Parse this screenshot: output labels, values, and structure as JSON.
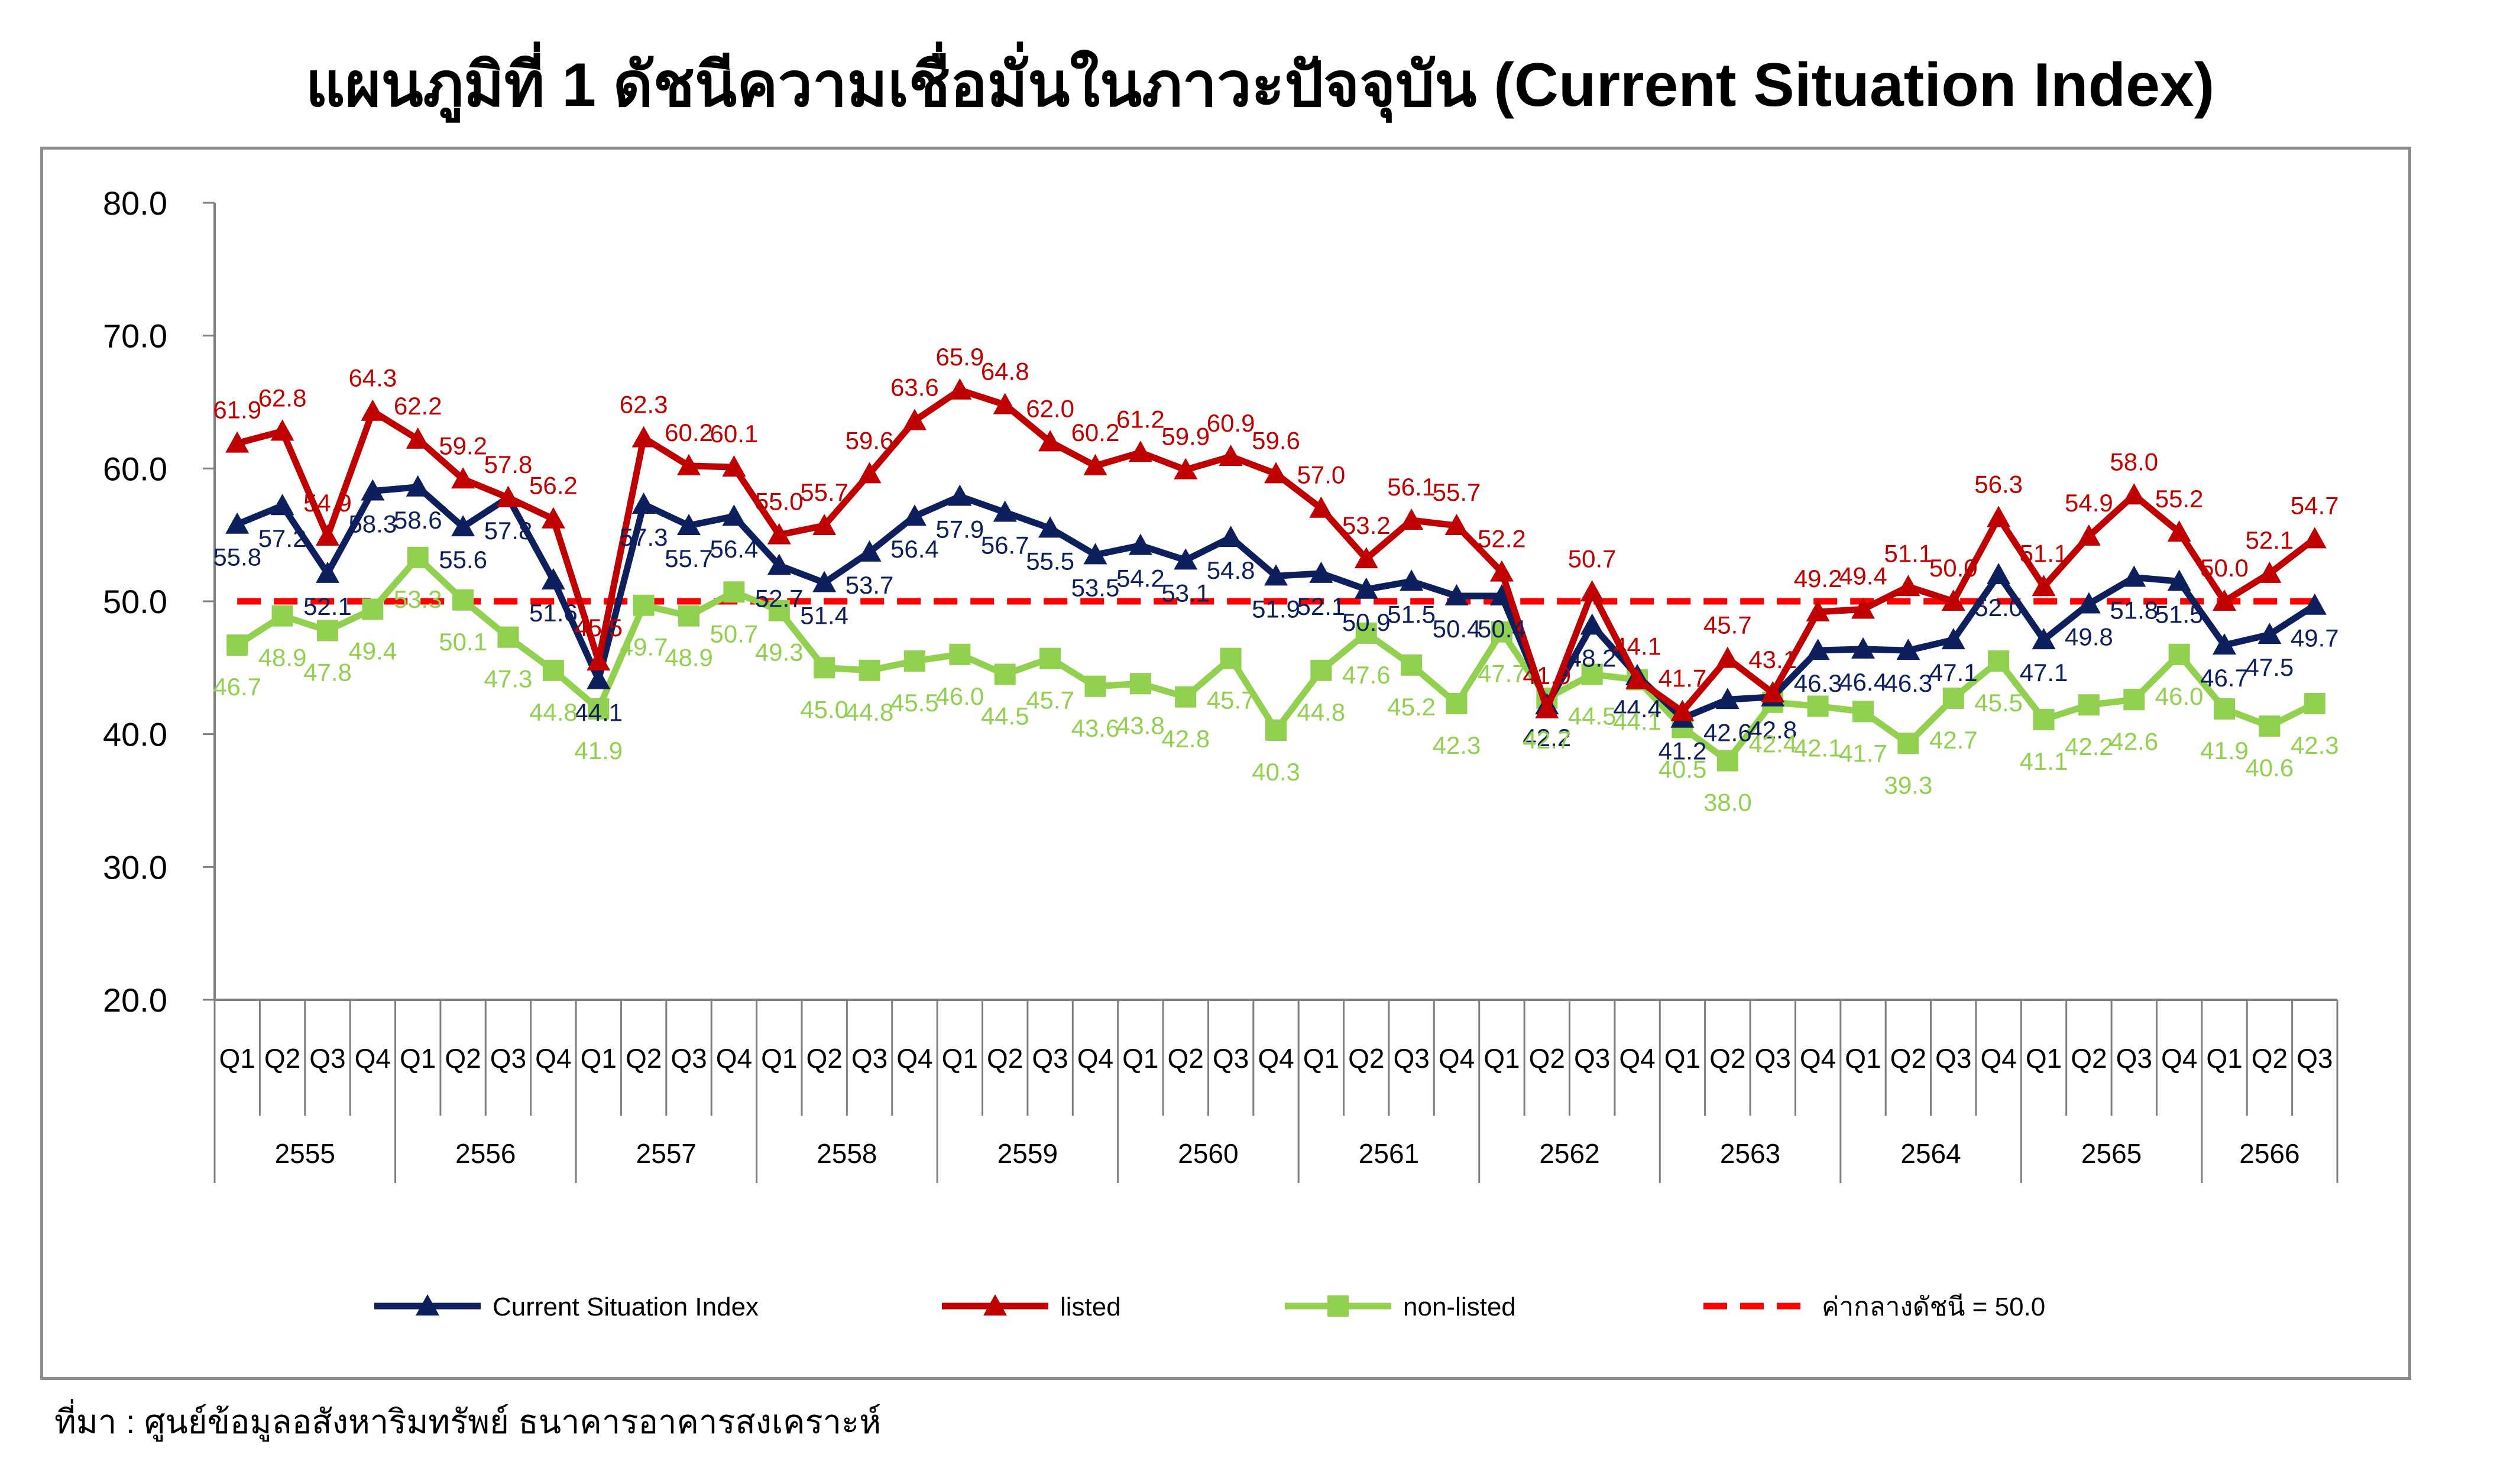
{
  "title": "แผนภูมิที่ 1 ดัชนีความเชื่อมั่นในภาวะปัจจุบัน (Current Situation Index)",
  "source": "ที่มา : ศูนย์ข้อมูลอสังหาริมทรัพย์ ธนาคารอาคารสงเคราะห์",
  "colors": {
    "index": "#0d1f5c",
    "listed": "#c00000",
    "nonlisted": "#92d050",
    "median": "#ff0000",
    "axis": "#7f7f7f"
  },
  "chart_data": {
    "type": "line",
    "ylim": [
      20,
      80
    ],
    "yticks": [
      "20.0",
      "30.0",
      "40.0",
      "50.0",
      "60.0",
      "70.0",
      "80.0"
    ],
    "quarters": [
      "Q1",
      "Q2",
      "Q3",
      "Q4",
      "Q1",
      "Q2",
      "Q3",
      "Q4",
      "Q1",
      "Q2",
      "Q3",
      "Q4",
      "Q1",
      "Q2",
      "Q3",
      "Q4",
      "Q1",
      "Q2",
      "Q3",
      "Q4",
      "Q1",
      "Q2",
      "Q3",
      "Q4",
      "Q1",
      "Q2",
      "Q3",
      "Q4",
      "Q1",
      "Q2",
      "Q3",
      "Q4",
      "Q1",
      "Q2",
      "Q3",
      "Q4",
      "Q1",
      "Q2",
      "Q3",
      "Q4",
      "Q1",
      "Q2",
      "Q3",
      "Q4",
      "Q1",
      "Q2",
      "Q3"
    ],
    "years": [
      "2555",
      "2556",
      "2557",
      "2558",
      "2559",
      "2560",
      "2561",
      "2562",
      "2563",
      "2564",
      "2565",
      "2566"
    ],
    "series": [
      {
        "name": "Current Situation Index",
        "key": "index",
        "values": [
          55.8,
          57.2,
          52.1,
          58.3,
          58.6,
          55.6,
          57.8,
          51.6,
          44.1,
          57.3,
          55.7,
          56.4,
          52.7,
          51.4,
          53.7,
          56.4,
          57.9,
          56.7,
          55.5,
          53.5,
          54.2,
          53.1,
          54.8,
          51.9,
          52.1,
          50.9,
          51.5,
          50.4,
          50.4,
          42.2,
          48.2,
          44.4,
          41.2,
          42.6,
          42.8,
          46.3,
          46.4,
          46.3,
          47.1,
          52.0,
          47.1,
          49.8,
          51.8,
          51.5,
          46.7,
          47.5,
          49.7
        ]
      },
      {
        "name": "listed",
        "key": "listed",
        "values": [
          61.9,
          62.8,
          54.9,
          64.3,
          62.2,
          59.2,
          57.8,
          56.2,
          45.5,
          62.3,
          60.2,
          60.1,
          55.0,
          55.7,
          59.6,
          63.6,
          65.9,
          64.8,
          62.0,
          60.2,
          61.2,
          59.9,
          60.9,
          59.6,
          57.0,
          53.2,
          56.1,
          55.7,
          52.2,
          41.9,
          50.7,
          44.1,
          41.7,
          45.7,
          43.1,
          49.2,
          49.4,
          51.1,
          50.0,
          56.3,
          51.1,
          54.9,
          58.0,
          55.2,
          50.0,
          52.1,
          54.7
        ]
      },
      {
        "name": "non-listed",
        "key": "nonlisted",
        "values": [
          46.7,
          48.9,
          47.8,
          49.4,
          53.3,
          50.1,
          47.3,
          44.8,
          41.9,
          49.7,
          48.9,
          50.7,
          49.3,
          45.0,
          44.8,
          45.5,
          46.0,
          44.5,
          45.7,
          43.6,
          43.8,
          42.8,
          45.7,
          40.3,
          44.8,
          47.6,
          45.2,
          42.3,
          47.7,
          42.7,
          44.5,
          44.1,
          40.5,
          38.0,
          42.4,
          42.1,
          41.7,
          39.3,
          42.7,
          45.5,
          41.1,
          42.2,
          42.6,
          46.0,
          41.9,
          40.6,
          42.3
        ]
      }
    ],
    "median": {
      "label": "ค่ากลางดัชนี = 50.0",
      "value": 50.0
    },
    "legend_position": "bottom"
  }
}
